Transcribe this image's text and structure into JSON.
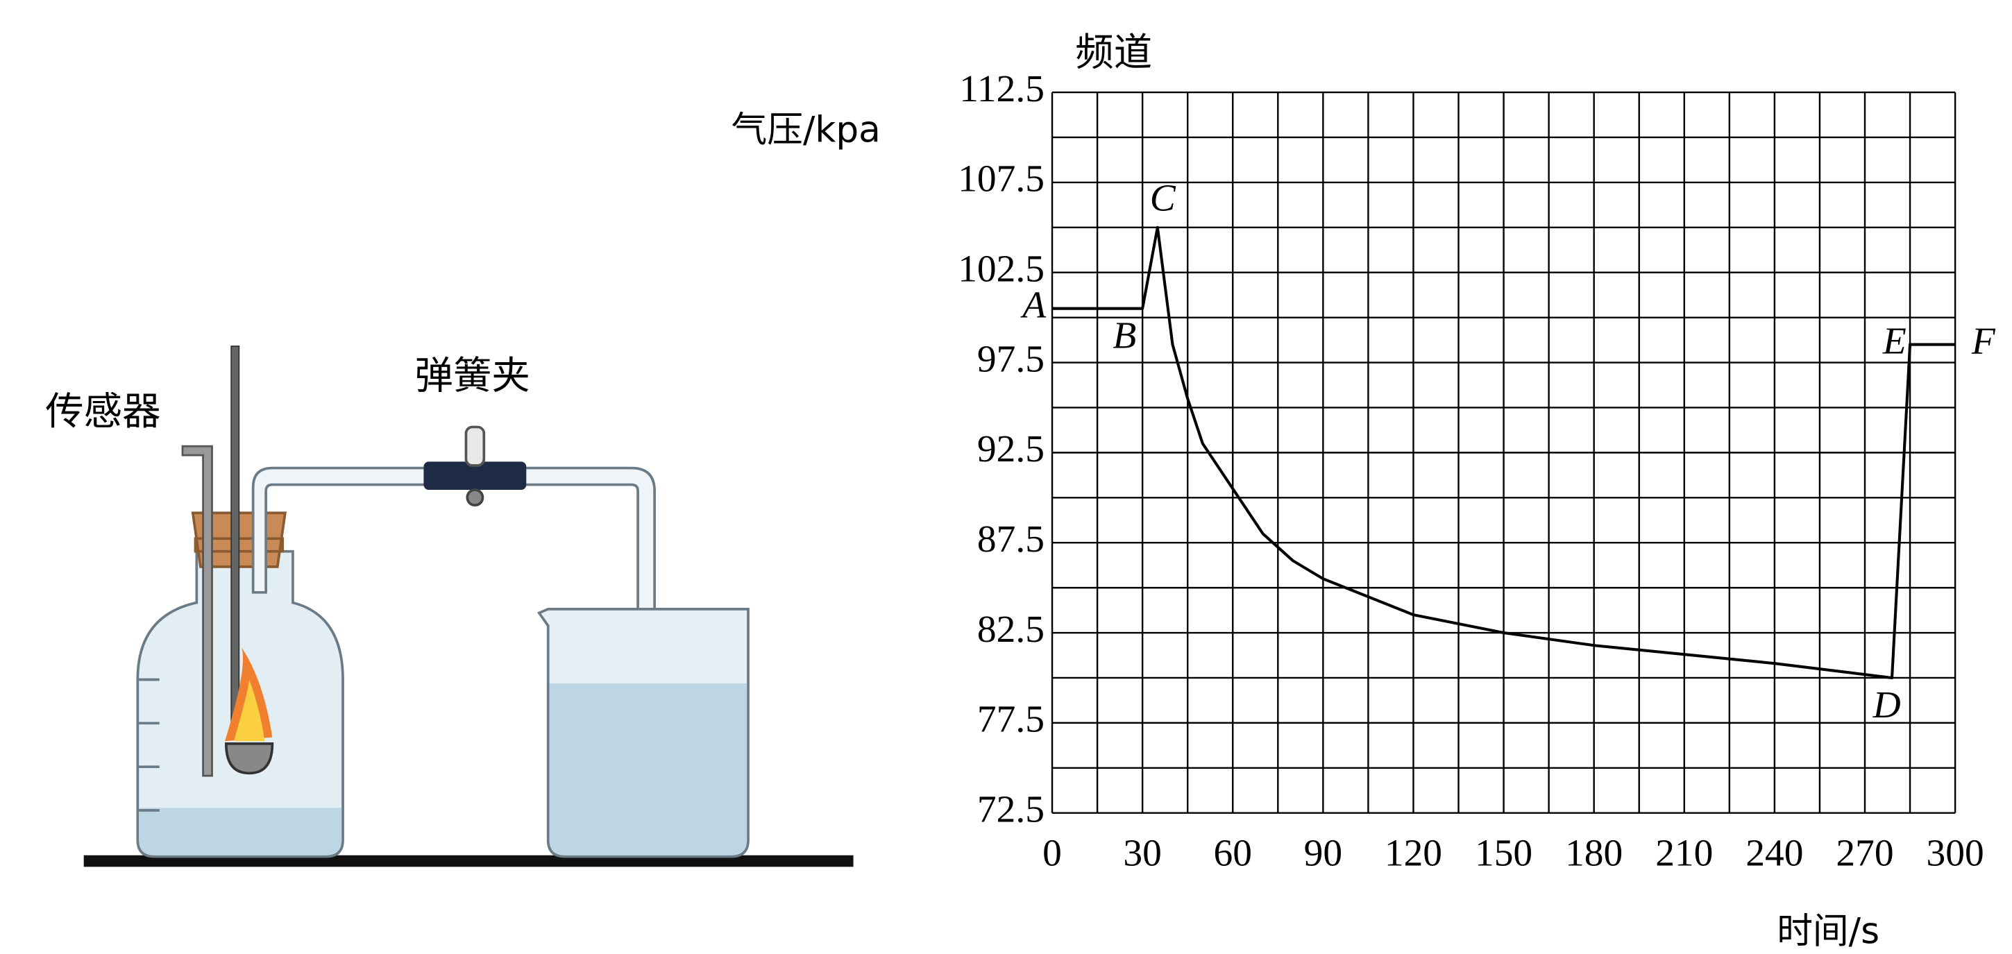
{
  "diagram": {
    "labels": [
      "传感器",
      "弹簧夹"
    ]
  },
  "chart_data": {
    "type": "line",
    "title": "频道",
    "x_label": "时间/s",
    "y_label": "气压/kpa",
    "x": [
      0,
      30,
      35,
      40,
      45,
      50,
      60,
      70,
      80,
      90,
      105,
      120,
      150,
      180,
      210,
      240,
      279,
      285,
      300
    ],
    "values": [
      100.5,
      100.5,
      105,
      98.5,
      95.5,
      93,
      90.5,
      88,
      86.5,
      85.5,
      84.5,
      83.5,
      82.5,
      81.8,
      81.3,
      80.8,
      80,
      98.5,
      98.5
    ],
    "color": "#000000",
    "xlim": [
      0,
      300
    ],
    "ylim": [
      72.5,
      112.5
    ],
    "xticks": [
      0,
      30,
      60,
      90,
      120,
      150,
      180,
      210,
      240,
      270,
      300
    ],
    "yticks": [
      72.5,
      77.5,
      82.5,
      87.5,
      92.5,
      97.5,
      102.5,
      107.5,
      112.5
    ],
    "grid": true,
    "annotations": [
      {
        "text": "A",
        "x": 0,
        "y": 100.5
      },
      {
        "text": "B",
        "x": 30,
        "y": 100.5
      },
      {
        "text": "C",
        "x": 35,
        "y": 105
      },
      {
        "text": "D",
        "x": 279,
        "y": 80
      },
      {
        "text": "E",
        "x": 285,
        "y": 98.5
      },
      {
        "text": "F",
        "x": 300,
        "y": 98.5
      }
    ]
  }
}
